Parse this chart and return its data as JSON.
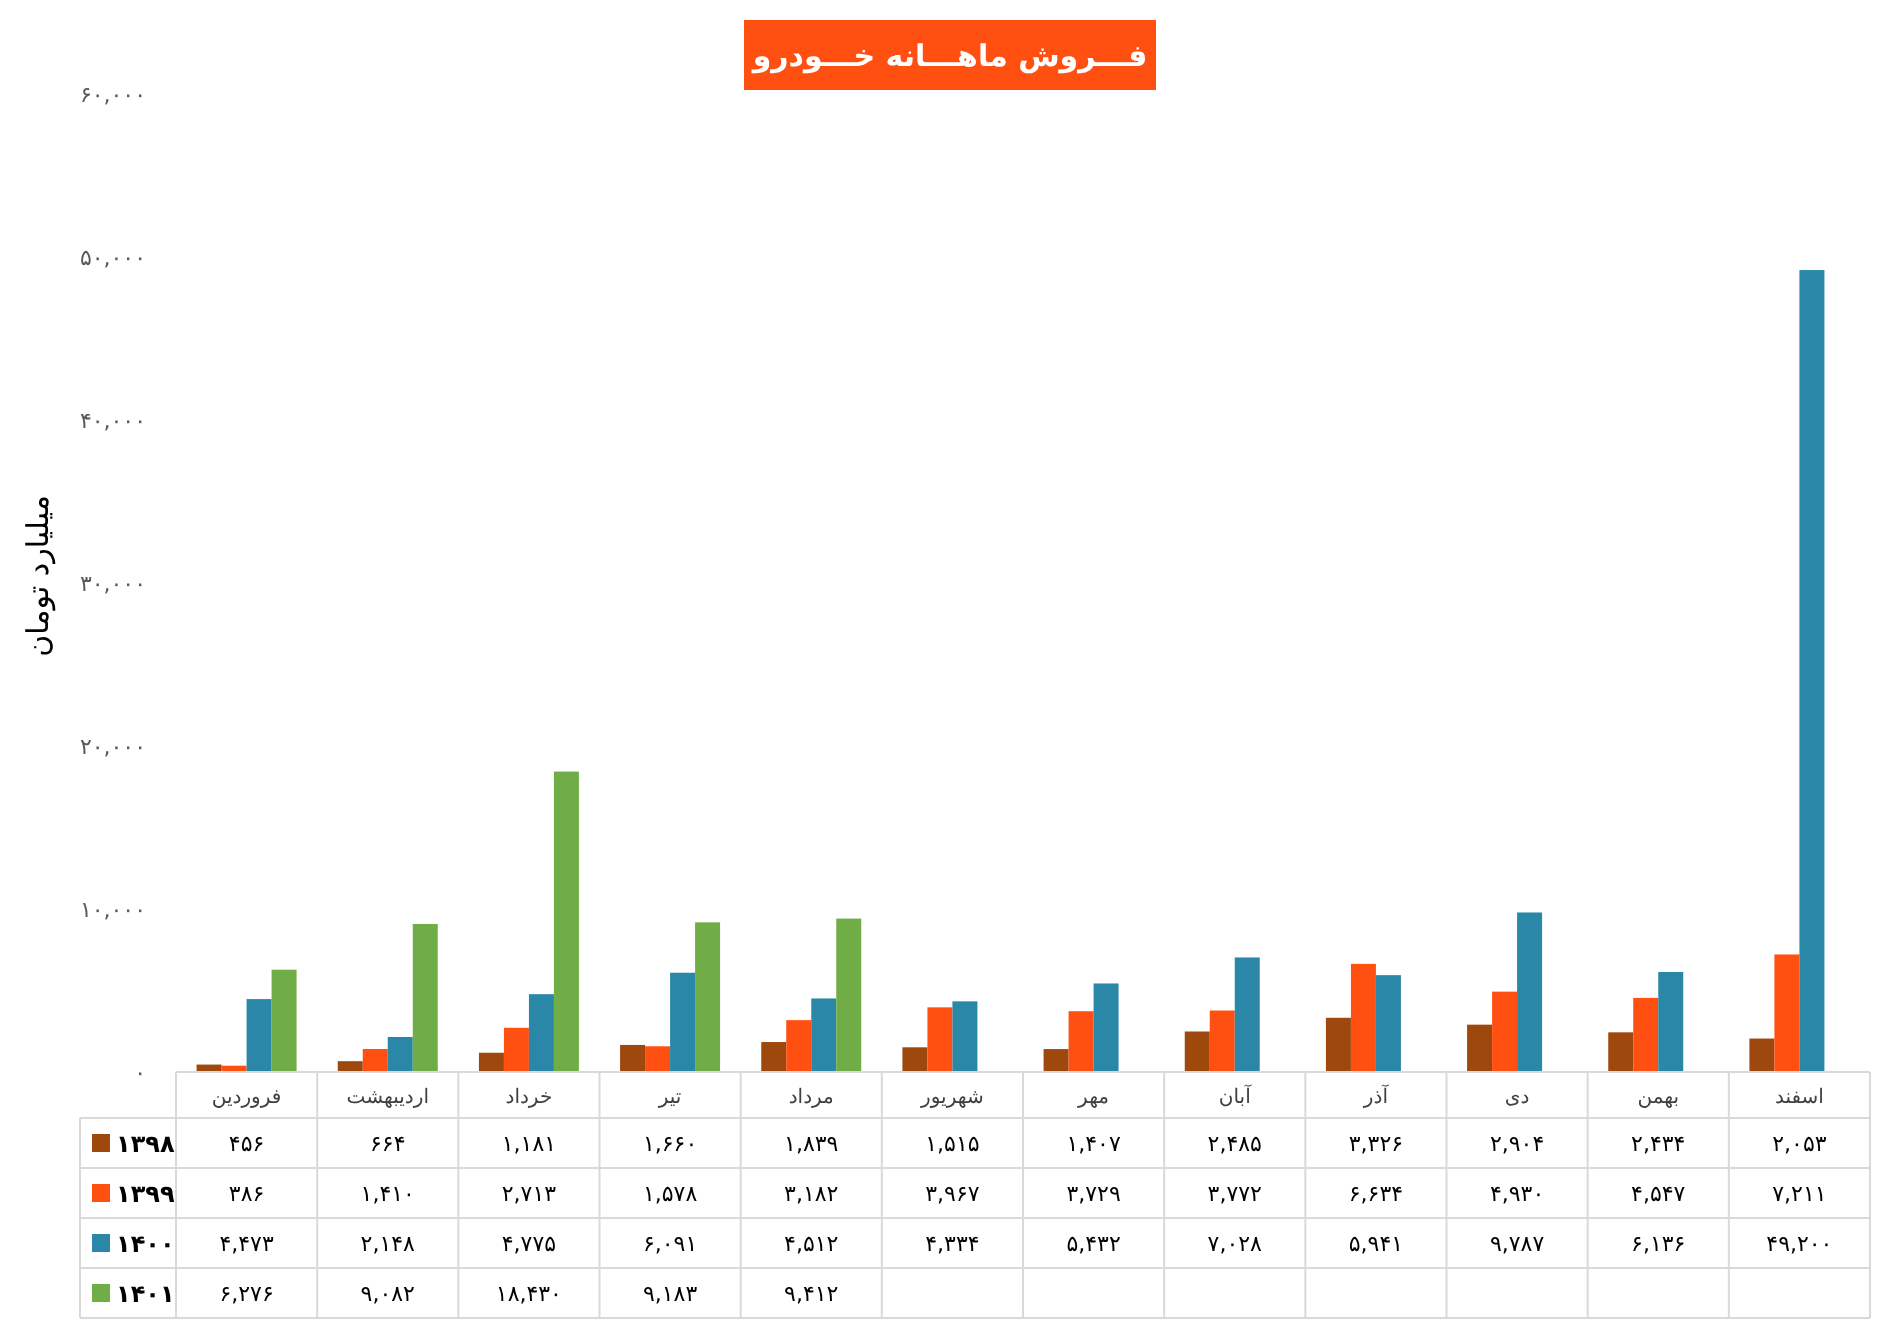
{
  "chart_data": {
    "type": "bar",
    "title": "فـــروش ماهـــانه خـــودرو",
    "ylabel": "میلیارد تومان",
    "categories": [
      "فروردین",
      "اردیبهشت",
      "خرداد",
      "تیر",
      "مرداد",
      "شهریور",
      "مهر",
      "آبان",
      "آذر",
      "دی",
      "بهمن",
      "اسفند"
    ],
    "series": [
      {
        "name": "۱۳۹۸",
        "color": "#9e480e",
        "values": [
          456,
          664,
          1181,
          1660,
          1839,
          1515,
          1407,
          2485,
          3326,
          2904,
          2434,
          2053
        ],
        "value_labels": [
          "۴۵۶",
          "۶۶۴",
          "۱,۱۸۱",
          "۱,۶۶۰",
          "۱,۸۳۹",
          "۱,۵۱۵",
          "۱,۴۰۷",
          "۲,۴۸۵",
          "۳,۳۲۶",
          "۲,۹۰۴",
          "۲,۴۳۴",
          "۲,۰۵۳"
        ]
      },
      {
        "name": "۱۳۹۹",
        "color": "#ff5011",
        "values": [
          386,
          1410,
          2713,
          1578,
          3182,
          3967,
          3729,
          3772,
          6634,
          4930,
          4547,
          7211
        ],
        "value_labels": [
          "۳۸۶",
          "۱,۴۱۰",
          "۲,۷۱۳",
          "۱,۵۷۸",
          "۳,۱۸۲",
          "۳,۹۶۷",
          "۳,۷۲۹",
          "۳,۷۷۲",
          "۶,۶۳۴",
          "۴,۹۳۰",
          "۴,۵۴۷",
          "۷,۲۱۱"
        ]
      },
      {
        "name": "۱۴۰۰",
        "color": "#2a87a8",
        "values": [
          4473,
          2148,
          4775,
          6091,
          4512,
          4334,
          5432,
          7028,
          5941,
          9787,
          6136,
          49200
        ],
        "value_labels": [
          "۴,۴۷۳",
          "۲,۱۴۸",
          "۴,۷۷۵",
          "۶,۰۹۱",
          "۴,۵۱۲",
          "۴,۳۳۴",
          "۵,۴۳۲",
          "۷,۰۲۸",
          "۵,۹۴۱",
          "۹,۷۸۷",
          "۶,۱۳۶",
          "۴۹,۲۰۰"
        ]
      },
      {
        "name": "۱۴۰۱",
        "color": "#70ad47",
        "values": [
          6276,
          9082,
          18430,
          9183,
          9412,
          null,
          null,
          null,
          null,
          null,
          null,
          null
        ],
        "value_labels": [
          "۶,۲۷۶",
          "۹,۰۸۲",
          "۱۸,۴۳۰",
          "۹,۱۸۳",
          "۹,۴۱۲",
          null,
          null,
          null,
          null,
          null,
          null,
          null
        ]
      }
    ],
    "ylim": [
      0,
      60000
    ],
    "yticks": [
      {
        "value": 0,
        "label": "۰"
      },
      {
        "value": 10000,
        "label": "۱۰,۰۰۰"
      },
      {
        "value": 20000,
        "label": "۲۰,۰۰۰"
      },
      {
        "value": 30000,
        "label": "۳۰,۰۰۰"
      },
      {
        "value": 40000,
        "label": "۴۰,۰۰۰"
      },
      {
        "value": 50000,
        "label": "۵۰,۰۰۰"
      },
      {
        "value": 60000,
        "label": "۶۰,۰۰۰"
      }
    ],
    "legend": "bottom"
  }
}
